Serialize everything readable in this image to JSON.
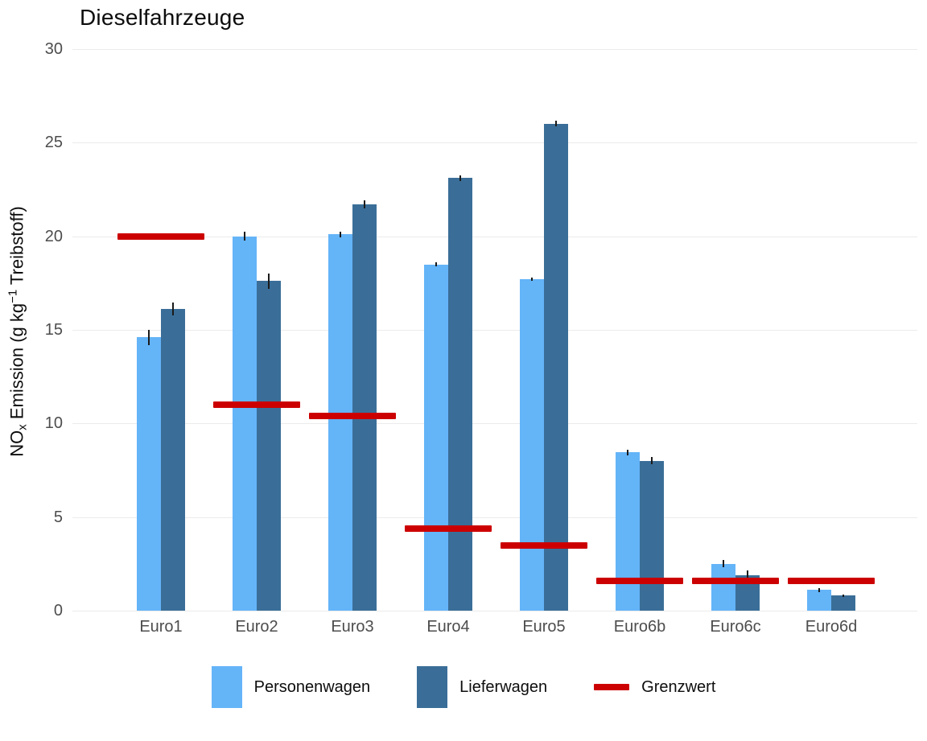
{
  "header": {
    "title": "Dieselfahrzeuge"
  },
  "y_axis": {
    "label_prefix": "NO",
    "label_sub": "x",
    "label_mid": " Emission (g kg",
    "label_sup": "−1",
    "label_suffix": " Treibstoff)"
  },
  "legend": {
    "items": [
      {
        "label": "Personenwagen",
        "swatch": "rect",
        "color": "#64b4f8"
      },
      {
        "label": "Lieferwagen",
        "swatch": "rect",
        "color": "#3a6e98"
      },
      {
        "label": "Grenzwert",
        "swatch": "dash",
        "color": "#cc0000"
      }
    ]
  },
  "colors": {
    "personenwagen": "#64b4f8",
    "lieferwagen": "#3a6e98",
    "grenzwert": "#cc0000",
    "gridline": "#ebebeb",
    "axis_text": "#4d4d4d",
    "errorbar": "#1a1a1a"
  },
  "chart_data": {
    "type": "bar",
    "title": "Dieselfahrzeuge",
    "ylabel": "NOx Emission (g kg-1 Treibstoff)",
    "xlabel": "",
    "categories": [
      "Euro1",
      "Euro2",
      "Euro3",
      "Euro4",
      "Euro5",
      "Euro6b",
      "Euro6c",
      "Euro6d"
    ],
    "series": [
      {
        "name": "Personenwagen",
        "color": "#64b4f8",
        "values": [
          14.6,
          20.0,
          20.1,
          18.5,
          17.7,
          8.45,
          2.5,
          1.1
        ],
        "errors": [
          0.4,
          0.25,
          0.15,
          0.12,
          0.1,
          0.15,
          0.2,
          0.1
        ]
      },
      {
        "name": "Lieferwagen",
        "color": "#3a6e98",
        "values": [
          16.1,
          17.6,
          21.7,
          23.1,
          26.0,
          8.0,
          1.9,
          0.8
        ],
        "errors": [
          0.35,
          0.4,
          0.2,
          0.15,
          0.15,
          0.2,
          0.25,
          0.08
        ]
      }
    ],
    "limit_series": {
      "name": "Grenzwert",
      "color": "#cc0000",
      "values": [
        20.0,
        11.0,
        10.4,
        4.4,
        3.5,
        1.6,
        1.6,
        1.6
      ]
    },
    "ylim": [
      0,
      30
    ],
    "yticks": [
      0,
      5,
      10,
      15,
      20,
      25,
      30
    ],
    "grid": "horizontal-major",
    "legend_position": "bottom",
    "error_bars": true
  }
}
